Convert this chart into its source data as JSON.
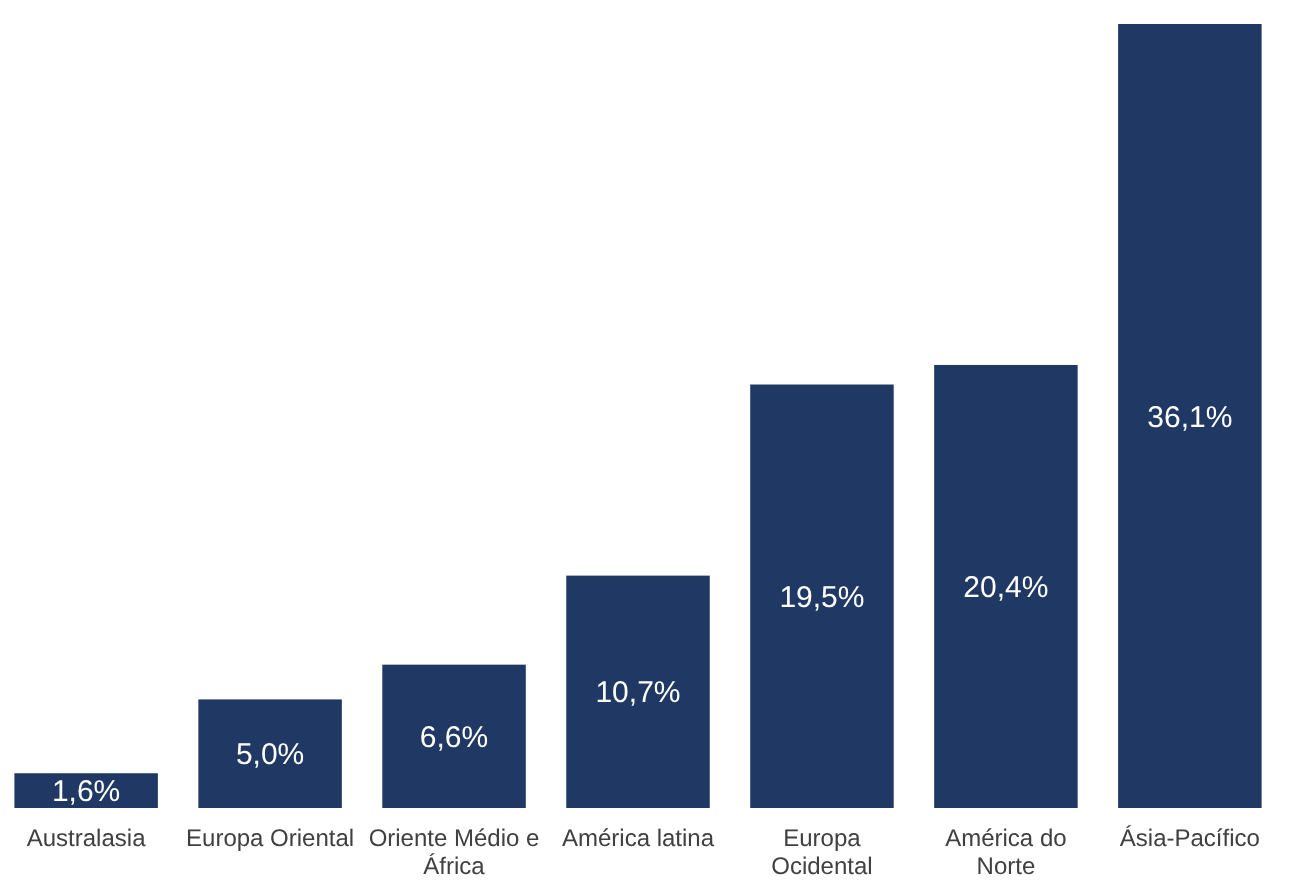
{
  "chart_data": {
    "type": "bar",
    "categories": [
      "Australasia",
      "Europa Oriental",
      "Oriente Médio e África",
      "América latina",
      "Europa Ocidental",
      "América do Norte",
      "Ásia-Pacífico"
    ],
    "values": [
      1.6,
      5.0,
      6.6,
      10.7,
      19.5,
      20.4,
      36.1
    ],
    "value_labels": [
      "1,6%",
      "5,0%",
      "6,6%",
      "10,7%",
      "19,5%",
      "20,4%",
      "36,1%"
    ],
    "color": "#1f3864"
  }
}
